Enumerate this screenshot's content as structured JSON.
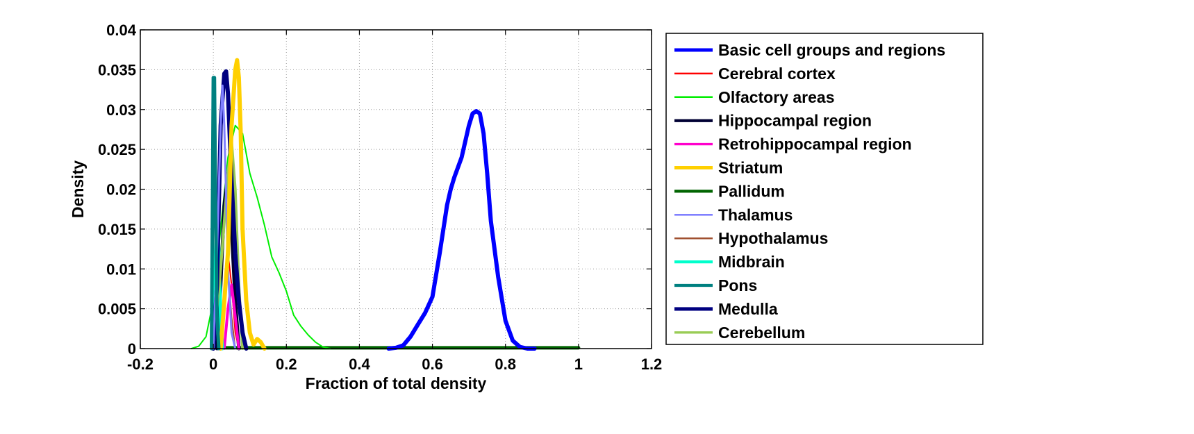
{
  "chart_data": {
    "type": "line",
    "title": "",
    "xlabel": "Fraction of total density",
    "ylabel": "Density",
    "xlim": [
      -0.2,
      1.2
    ],
    "ylim": [
      0,
      0.04
    ],
    "xticks": [
      -0.2,
      0,
      0.2,
      0.4,
      0.6,
      0.8,
      1,
      1.2
    ],
    "xtick_labels": [
      "-0.2",
      "0",
      "0.2",
      "0.4",
      "0.6",
      "0.8",
      "1",
      "1.2"
    ],
    "yticks": [
      0,
      0.005,
      0.01,
      0.015,
      0.02,
      0.025,
      0.03,
      0.035,
      0.04
    ],
    "ytick_labels": [
      "0",
      "0.005",
      "0.01",
      "0.015",
      "0.02",
      "0.025",
      "0.03",
      "0.035",
      "0.04"
    ],
    "grid": true,
    "legend_position": "outside-right",
    "series": [
      {
        "name": "Basic cell groups and regions",
        "color": "#0000ff",
        "width": 6,
        "x": [
          0.48,
          0.5,
          0.52,
          0.54,
          0.56,
          0.58,
          0.6,
          0.62,
          0.64,
          0.65,
          0.66,
          0.68,
          0.7,
          0.71,
          0.72,
          0.73,
          0.74,
          0.75,
          0.76,
          0.78,
          0.8,
          0.82,
          0.84,
          0.86,
          0.88
        ],
        "y": [
          0,
          0.0001,
          0.0004,
          0.0015,
          0.003,
          0.0045,
          0.0065,
          0.012,
          0.018,
          0.02,
          0.0215,
          0.024,
          0.028,
          0.0295,
          0.0298,
          0.0295,
          0.027,
          0.022,
          0.016,
          0.009,
          0.0035,
          0.001,
          0.0002,
          0,
          0
        ]
      },
      {
        "name": "Cerebral cortex",
        "color": "#ff0000",
        "width": 2,
        "x": [
          0.02,
          0.03,
          0.04,
          0.05,
          0.06,
          0.07
        ],
        "y": [
          0,
          0.005,
          0.012,
          0.008,
          0.002,
          0
        ]
      },
      {
        "name": "Olfactory areas",
        "color": "#00ee00",
        "width": 2,
        "x": [
          -0.06,
          -0.04,
          -0.02,
          0.0,
          0.02,
          0.04,
          0.06,
          0.08,
          0.1,
          0.12,
          0.14,
          0.16,
          0.18,
          0.2,
          0.22,
          0.24,
          0.26,
          0.28,
          0.3,
          0.32
        ],
        "y": [
          0,
          0.0003,
          0.0015,
          0.006,
          0.015,
          0.024,
          0.028,
          0.027,
          0.022,
          0.019,
          0.0155,
          0.0115,
          0.0095,
          0.0072,
          0.0042,
          0.0028,
          0.0017,
          0.0008,
          0.0002,
          0
        ]
      },
      {
        "name": "Hippocampal region",
        "color": "#000033",
        "width": 5,
        "x": [
          0.01,
          0.02,
          0.03,
          0.04,
          0.05,
          0.06,
          0.07
        ],
        "y": [
          0,
          0.008,
          0.018,
          0.022,
          0.015,
          0.006,
          0
        ]
      },
      {
        "name": "Retrohippocampal region",
        "color": "#ff00cc",
        "width": 4,
        "x": [
          0.03,
          0.04,
          0.05,
          0.06,
          0.07
        ],
        "y": [
          0,
          0.005,
          0.008,
          0.004,
          0
        ]
      },
      {
        "name": "Striatum",
        "color": "#ffd000",
        "width": 6,
        "x": [
          0.02,
          0.04,
          0.05,
          0.06,
          0.065,
          0.07,
          0.075,
          0.08,
          0.09,
          0.1,
          0.11,
          0.12,
          0.13,
          0.14
        ],
        "y": [
          0,
          0.012,
          0.028,
          0.035,
          0.0362,
          0.034,
          0.027,
          0.015,
          0.006,
          0.002,
          0.0005,
          0.0012,
          0.0008,
          0
        ]
      },
      {
        "name": "Pallidum",
        "color": "#006400",
        "width": 5,
        "x": [
          0.0,
          0.1,
          0.3,
          0.5,
          0.7,
          0.9,
          1.0
        ],
        "y": [
          0.0001,
          0.0001,
          0.0001,
          0.0001,
          0.0001,
          0.0001,
          0.0001
        ]
      },
      {
        "name": "Thalamus",
        "color": "#8080ff",
        "width": 3,
        "x": [
          0.0,
          0.01,
          0.02,
          0.025,
          0.03,
          0.04,
          0.05,
          0.06
        ],
        "y": [
          0,
          0.012,
          0.028,
          0.033,
          0.028,
          0.01,
          0.002,
          0
        ]
      },
      {
        "name": "Hypothalamus",
        "color": "#a05030",
        "width": 2,
        "x": [
          0.02,
          0.03,
          0.04,
          0.05,
          0.06
        ],
        "y": [
          0,
          0.006,
          0.01,
          0.004,
          0
        ]
      },
      {
        "name": "Midbrain",
        "color": "#00ffcc",
        "width": 5,
        "x": [
          0.0,
          0.005,
          0.01,
          0.015,
          0.02,
          0.025
        ],
        "y": [
          0,
          0.01,
          0.018,
          0.012,
          0.004,
          0
        ]
      },
      {
        "name": "Pons",
        "color": "#008080",
        "width": 5,
        "x": [
          -0.005,
          -0.002,
          0.0,
          0.003,
          0.006,
          0.01,
          0.015
        ],
        "y": [
          0,
          0.02,
          0.034,
          0.034,
          0.018,
          0.004,
          0
        ]
      },
      {
        "name": "Medulla",
        "color": "#000080",
        "width": 6,
        "x": [
          0.0,
          0.01,
          0.02,
          0.03,
          0.035,
          0.04,
          0.05,
          0.06,
          0.07,
          0.08,
          0.09
        ],
        "y": [
          0,
          0.008,
          0.028,
          0.0345,
          0.0348,
          0.032,
          0.021,
          0.012,
          0.006,
          0.002,
          0
        ]
      },
      {
        "name": "Cerebellum",
        "color": "#99cc55",
        "width": 4,
        "x": [
          0.0,
          0.02,
          0.04,
          0.05,
          0.06,
          0.07,
          0.08
        ],
        "y": [
          0,
          0.01,
          0.022,
          0.026,
          0.02,
          0.008,
          0
        ]
      }
    ]
  }
}
